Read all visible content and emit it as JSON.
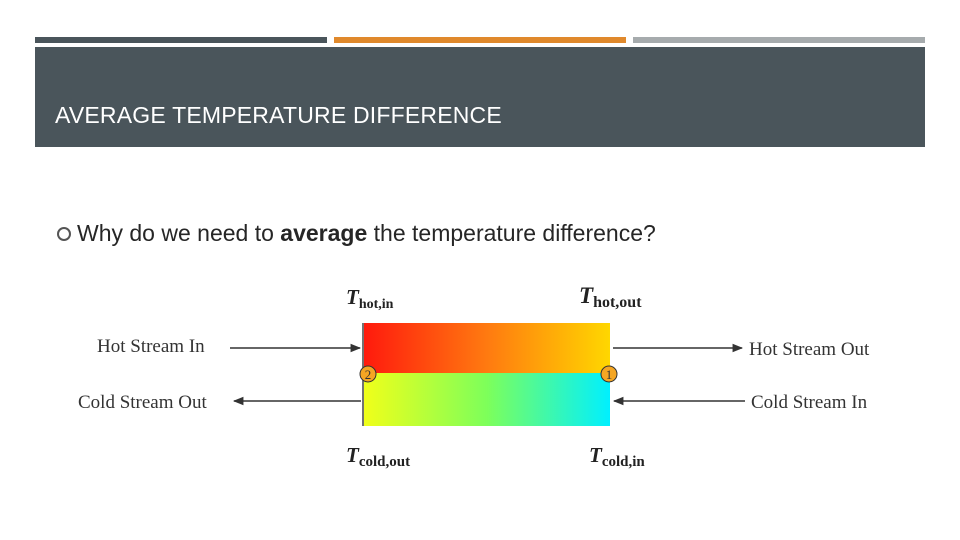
{
  "slide": {
    "title": "AVERAGE TEMPERATURE DIFFERENCE",
    "bullet": {
      "before": "Why do we need to ",
      "emphasis": "average",
      "after": " the temperature difference?"
    }
  },
  "diagram": {
    "hot_in_label": "Hot Stream In",
    "hot_out_label": "Hot Stream Out",
    "cold_out_label": "Cold Stream Out",
    "cold_in_label": "Cold Stream In",
    "t_hot_in": {
      "base": "T",
      "sub": "hot,in"
    },
    "t_hot_out": {
      "base": "T",
      "sub": "hot,out"
    },
    "t_cold_out": {
      "base": "T",
      "sub": "cold,out"
    },
    "t_cold_in": {
      "base": "T",
      "sub": "cold,in"
    },
    "point_left": "2",
    "point_right": "1"
  },
  "colors": {
    "header_bg": "#4a555b",
    "bar_left": "#4a555b",
    "bar_middle": "#e0892c",
    "bar_right": "#a6abad",
    "hot_start": "#ff1a0d",
    "hot_end": "#ffd700",
    "cold_start": "#f0ff1a",
    "cold_end": "#00f0ff",
    "marker_fill": "#f5a623"
  }
}
